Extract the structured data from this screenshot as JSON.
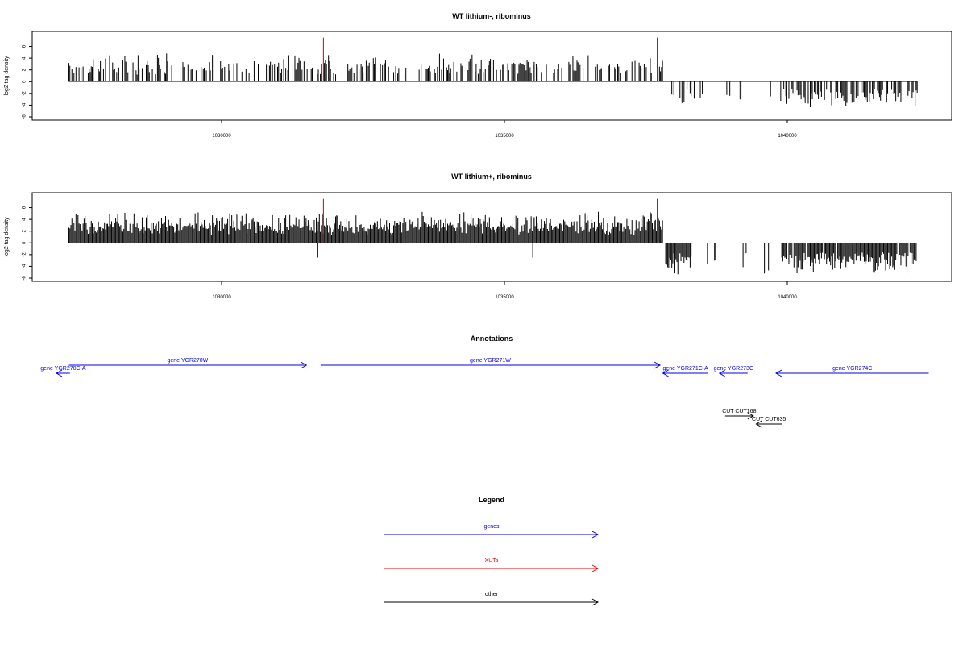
{
  "chart_data": [
    {
      "type": "bar",
      "title": "WT lithium-, ribominus",
      "ylabel": "log2 tag density",
      "xlim": [
        1027200,
        1042500
      ],
      "ylim": [
        -6,
        8
      ],
      "x_ticks": [
        1030000,
        1035000,
        1040000
      ],
      "x_tick_labels": [
        "1030000",
        "1035000",
        "1040000"
      ],
      "y_ticks": [
        -6,
        -4,
        -2,
        0,
        2,
        4,
        6
      ],
      "y_tick_labels": [
        "-6",
        "-4",
        "-2",
        "0",
        "2",
        "4",
        "6"
      ],
      "positive_signal_range": [
        1027300,
        1037800
      ],
      "negative_signal_range": [
        1037800,
        1042300
      ],
      "typical_positive_max": 4.5,
      "typical_negative_min": -4.5,
      "highlighted_peaks": [
        {
          "x": 1031800,
          "y": 7.5,
          "color": "#cc0000"
        },
        {
          "x": 1037700,
          "y": 7.5,
          "color": "#cc0000"
        }
      ]
    },
    {
      "type": "bar",
      "title": "WT lithium+, ribominus",
      "ylabel": "log2 tag density",
      "xlim": [
        1027200,
        1042500
      ],
      "ylim": [
        -6,
        8
      ],
      "x_ticks": [
        1030000,
        1035000,
        1040000
      ],
      "x_tick_labels": [
        "1030000",
        "1035000",
        "1040000"
      ],
      "y_ticks": [
        -6,
        -4,
        -2,
        0,
        2,
        4,
        6
      ],
      "y_tick_labels": [
        "-6",
        "-4",
        "-2",
        "0",
        "2",
        "4",
        "6"
      ],
      "positive_signal_range": [
        1027300,
        1037800
      ],
      "negative_signal_range": [
        1037800,
        1042300
      ],
      "typical_positive_max": 5,
      "typical_negative_min": -5.5,
      "highlighted_peaks": [
        {
          "x": 1031800,
          "y": 7.5,
          "color": "#cc0000"
        },
        {
          "x": 1037700,
          "y": 7.5,
          "color": "#cc0000"
        }
      ]
    }
  ],
  "annotations": {
    "title": "Annotations",
    "features": [
      {
        "label": "gene YGR270C-A",
        "start": 1027320,
        "end": 1027080,
        "row": 1,
        "color": "#0000ee"
      },
      {
        "label": "gene YGR270W",
        "start": 1027300,
        "end": 1031500,
        "row": 0,
        "color": "#0000ee"
      },
      {
        "label": "gene YGR271W",
        "start": 1031750,
        "end": 1037750,
        "row": 0,
        "color": "#0000ee"
      },
      {
        "label": "gene YGR271C-A",
        "start": 1038600,
        "end": 1037800,
        "row": 1,
        "color": "#0000ee"
      },
      {
        "label": "gene YGR273C",
        "start": 1039300,
        "end": 1038800,
        "row": 1,
        "color": "#0000ee"
      },
      {
        "label": "gene YGR274C",
        "start": 1042500,
        "end": 1039800,
        "row": 1,
        "color": "#0000ee"
      },
      {
        "label": "CUT CUT168",
        "start": 1038900,
        "end": 1039400,
        "row": 2,
        "color": "#000000"
      },
      {
        "label": "CUT CUT635",
        "start": 1039900,
        "end": 1039450,
        "row": 3,
        "color": "#000000"
      }
    ]
  },
  "legend": {
    "title": "Legend",
    "items": [
      {
        "label": "genes",
        "color": "#0000ee"
      },
      {
        "label": "XUTs",
        "color": "#ee0000"
      },
      {
        "label": "other",
        "color": "#000000"
      }
    ]
  }
}
